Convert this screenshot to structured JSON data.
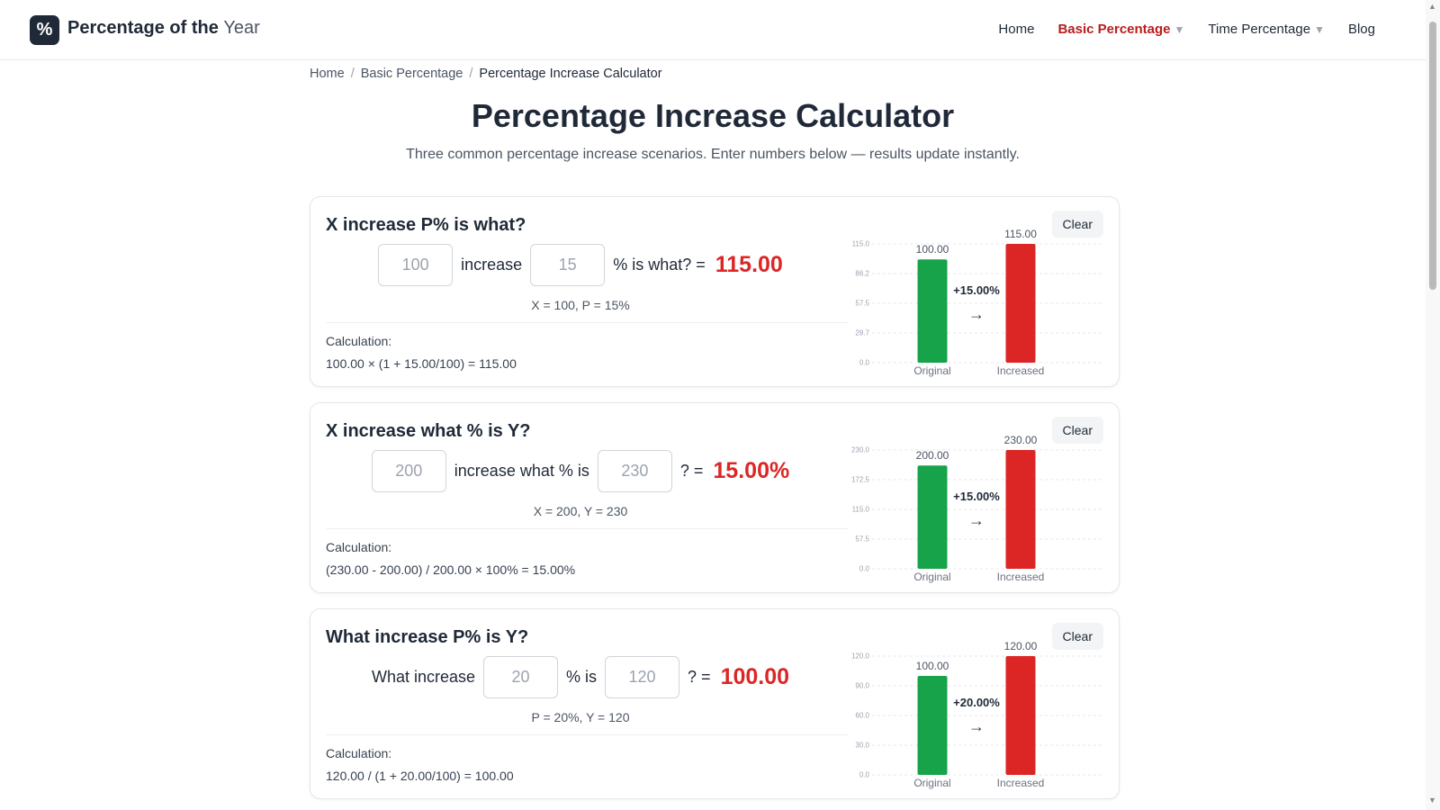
{
  "header": {
    "logo_symbol": "%",
    "brand_main": "Percentage of the",
    "brand_year": "Year",
    "nav": [
      {
        "label": "Home",
        "active": false,
        "dropdown": false
      },
      {
        "label": "Basic Percentage",
        "active": true,
        "dropdown": true
      },
      {
        "label": "Time Percentage",
        "active": false,
        "dropdown": true
      },
      {
        "label": "Blog",
        "active": false,
        "dropdown": false
      }
    ],
    "caret": "▼"
  },
  "breadcrumb": {
    "items": [
      "Home",
      "Basic Percentage"
    ],
    "current": "Percentage Increase Calculator",
    "separator": "/"
  },
  "page": {
    "title": "Percentage Increase Calculator",
    "subtitle": "Three common percentage increase scenarios. Enter numbers below — results update instantly."
  },
  "colors": {
    "original_bar": "#16a34a",
    "increased_bar": "#dc2626",
    "result_text": "#dc2626",
    "active_nav": "#b91c1c"
  },
  "cards": [
    {
      "title": "X increase P% is what?",
      "clear_label": "Clear",
      "eq_prefix": "",
      "input1_placeholder": "100",
      "eq_middle": "increase",
      "input2_placeholder": "15",
      "eq_suffix": "% is what? =",
      "result": "115.00",
      "summary": "X = 100, P = 15%",
      "calc_label": "Calculation:",
      "calc_formula": "100.00 × (1 + 15.00/100) = 115.00"
    },
    {
      "title": "X increase what % is Y?",
      "clear_label": "Clear",
      "eq_prefix": "",
      "input1_placeholder": "200",
      "eq_middle": "increase what % is",
      "input2_placeholder": "230",
      "eq_suffix": "? =",
      "result": "15.00%",
      "summary": "X = 200, Y = 230",
      "calc_label": "Calculation:",
      "calc_formula": "(230.00 - 200.00) / 200.00 × 100% = 15.00%"
    },
    {
      "title": "What increase P% is Y?",
      "clear_label": "Clear",
      "eq_prefix": "What increase",
      "input1_placeholder": "20",
      "eq_middle": "% is",
      "input2_placeholder": "120",
      "eq_suffix": "? =",
      "result": "100.00",
      "summary": "P = 20%, Y = 120",
      "calc_label": "Calculation:",
      "calc_formula": "120.00 / (1 + 20.00/100) = 100.00"
    }
  ],
  "chart_data": [
    {
      "type": "bar",
      "categories": [
        "Original",
        "Increased"
      ],
      "values": [
        100,
        115
      ],
      "value_labels": [
        "100.00",
        "115.00"
      ],
      "ylim": [
        0,
        115
      ],
      "yticks": [
        "0.0",
        "28.7",
        "57.5",
        "86.2",
        "115.0"
      ],
      "change_label": "+15.00%",
      "arrow": "→",
      "grid": true
    },
    {
      "type": "bar",
      "categories": [
        "Original",
        "Increased"
      ],
      "values": [
        200,
        230
      ],
      "value_labels": [
        "200.00",
        "230.00"
      ],
      "ylim": [
        0,
        230
      ],
      "yticks": [
        "0.0",
        "57.5",
        "115.0",
        "172.5",
        "230.0"
      ],
      "change_label": "+15.00%",
      "arrow": "→",
      "grid": true
    },
    {
      "type": "bar",
      "categories": [
        "Original",
        "Increased"
      ],
      "values": [
        100,
        120
      ],
      "value_labels": [
        "100.00",
        "120.00"
      ],
      "ylim": [
        0,
        120
      ],
      "yticks": [
        "0.0",
        "30.0",
        "60.0",
        "90.0",
        "120.0"
      ],
      "change_label": "+20.00%",
      "arrow": "→",
      "grid": true
    }
  ]
}
